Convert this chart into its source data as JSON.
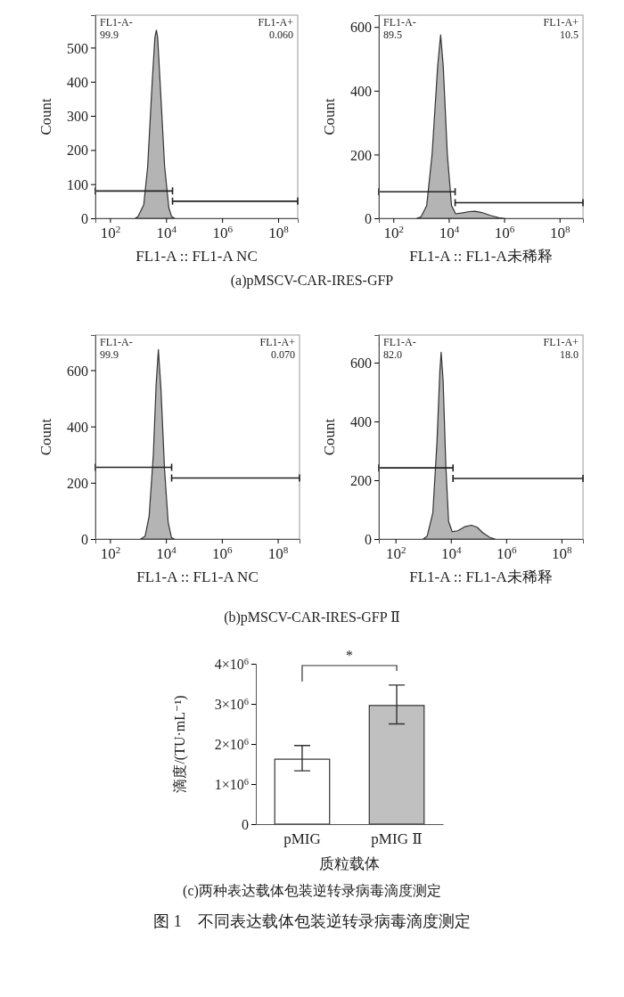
{
  "chart_data": [
    {
      "type": "area",
      "log": "x",
      "xlabel": "FL1-A :: FL1-A NC",
      "ylabel": "Count",
      "xlim": [
        30,
        500000000
      ],
      "ylim": [
        0,
        595
      ],
      "xticks": [
        {
          "value": 100,
          "label": "10$^{2}$"
        },
        {
          "value": 10000,
          "label": "10$^{4}$"
        },
        {
          "value": 1000000,
          "label": "10$^{6}$"
        },
        {
          "value": 100000000,
          "label": "10$^{8}$"
        }
      ],
      "yticks": [
        0,
        100,
        200,
        300,
        400,
        500
      ],
      "annotations": [
        "FL1-A-",
        "99.9",
        "FL1-A+",
        "0.060",
        "(a)pMSCV-CAR-IRES-GFP"
      ],
      "series": [
        {
          "type": "area",
          "color": "#b4b4b4",
          "x": [
            800,
            1000,
            1600,
            2200,
            3200,
            4000,
            4500,
            5000,
            6300,
            8900,
            12600,
            15800,
            20000
          ],
          "values": [
            0,
            5,
            40,
            150,
            400,
            530,
            551,
            530,
            380,
            150,
            30,
            5,
            0
          ]
        },
        {
          "type": "line",
          "color": "#222222",
          "x": [
            30,
            17000
          ],
          "values": [
            80,
            80
          ]
        },
        {
          "type": "line",
          "color": "#222222",
          "x": [
            17000,
            500000000
          ],
          "values": [
            50,
            50
          ]
        }
      ]
    },
    {
      "type": "area",
      "log": "x",
      "xlabel": "FL1-A :: FL1-A未稀释",
      "ylabel": "Count",
      "xlim": [
        30,
        700000000
      ],
      "ylim": [
        0,
        637
      ],
      "xticks": [
        {
          "value": 100,
          "label": "10$^{2}$"
        },
        {
          "value": 10000,
          "label": "10$^{4}$"
        },
        {
          "value": 1000000,
          "label": "10$^{6}$"
        },
        {
          "value": 100000000,
          "label": "10$^{8}$"
        }
      ],
      "yticks": [
        0,
        200,
        400,
        600
      ],
      "annotations": [
        "FL1-A-",
        "89.5",
        "FL1-A+",
        "10.5"
      ],
      "series": [
        {
          "type": "area",
          "color": "#b4b4b4",
          "x": [
            710,
            1000,
            1600,
            2500,
            4000,
            5100,
            6300,
            8900,
            12600,
            17800,
            31600,
            56200,
            89100,
            158500,
            316000,
            631000,
            1000000
          ],
          "values": [
            0,
            5,
            40,
            200,
            480,
            575,
            480,
            200,
            40,
            14,
            17,
            21,
            22,
            18,
            9,
            2,
            0
          ]
        },
        {
          "type": "line",
          "color": "#222222",
          "x": [
            30,
            17000
          ],
          "values": [
            83,
            83
          ]
        },
        {
          "type": "line",
          "color": "#222222",
          "x": [
            17000,
            700000000
          ],
          "values": [
            49,
            49
          ]
        }
      ]
    },
    {
      "type": "area",
      "log": "x",
      "xlabel": "FL1-A :: FL1-A NC",
      "ylabel": "Count",
      "xlim": [
        30,
        600000000
      ],
      "ylim": [
        0,
        725
      ],
      "xticks": [
        {
          "value": 100,
          "label": "10$^{2}$"
        },
        {
          "value": 10000,
          "label": "10$^{4}$"
        },
        {
          "value": 1000000,
          "label": "10$^{6}$"
        },
        {
          "value": 100000000,
          "label": "10$^{8}$"
        }
      ],
      "yticks": [
        0,
        200,
        400,
        600
      ],
      "annotations": [
        "FL1-A-",
        "99.9",
        "FL1-A+",
        "0.070",
        "(b)pMSCV-CAR-IRES-GFP Ⅱ"
      ],
      "series": [
        {
          "type": "area",
          "color": "#b4b4b4",
          "x": [
            1260,
            1800,
            2500,
            3550,
            4470,
            5370,
            6600,
            8900,
            12000,
            15800,
            20000
          ],
          "values": [
            0,
            10,
            80,
            300,
            550,
            673,
            540,
            250,
            60,
            5,
            0
          ]
        },
        {
          "type": "line",
          "color": "#222222",
          "x": [
            30,
            16000
          ],
          "values": [
            255,
            255
          ]
        },
        {
          "type": "line",
          "color": "#222222",
          "x": [
            16000,
            600000000
          ],
          "values": [
            217,
            217
          ]
        }
      ]
    },
    {
      "type": "area",
      "log": "x",
      "xlabel": "FL1-A :: FL1-A未稀释",
      "ylabel": "Count",
      "xlim": [
        25,
        600000000
      ],
      "ylim": [
        0,
        694
      ],
      "xticks": [
        {
          "value": 100,
          "label": "10$^{2}$"
        },
        {
          "value": 10000,
          "label": "10$^{4}$"
        },
        {
          "value": 1000000,
          "label": "10$^{6}$"
        },
        {
          "value": 100000000,
          "label": "10$^{8}$"
        }
      ],
      "yticks": [
        0,
        200,
        400,
        600
      ],
      "annotations": [
        "FL1-A-",
        "82.0",
        "FL1-A+",
        "18.0"
      ],
      "series": [
        {
          "type": "area",
          "color": "#b4b4b4",
          "x": [
            1000,
            1400,
            2240,
            3160,
            4000,
            4470,
            5250,
            6600,
            8300,
            11200,
            17800,
            31600,
            56200,
            89100,
            141000,
            251000,
            398000
          ],
          "values": [
            0,
            10,
            90,
            330,
            570,
            635,
            540,
            250,
            60,
            25,
            28,
            42,
            47,
            40,
            22,
            6,
            0
          ]
        },
        {
          "type": "line",
          "color": "#222222",
          "x": [
            25,
            12000
          ],
          "values": [
            242,
            242
          ]
        },
        {
          "type": "line",
          "color": "#222222",
          "x": [
            12000,
            600000000
          ],
          "values": [
            206,
            206
          ]
        }
      ]
    },
    {
      "type": "bar",
      "xlabel": "质粒载体",
      "ylabel": "滴度/(TU·mL⁻¹)",
      "categories": [
        "pMIG",
        "pMIG Ⅱ"
      ],
      "ylim": [
        0,
        4000000
      ],
      "yticks": [
        0,
        {
          "value": 1000000,
          "label": "1×10$^{6}$"
        },
        {
          "value": 2000000,
          "label": "2×10$^{6}$"
        },
        {
          "value": 3000000,
          "label": "3×10$^{6}$"
        },
        {
          "value": 4000000,
          "label": "4×10$^{6}$"
        }
      ],
      "values": [
        1620000,
        2960000
      ],
      "colors": [
        "#ffffff",
        "#c0c0c0"
      ],
      "errors": [
        [
          1330000,
          1960000
        ],
        [
          2500000,
          3470000
        ]
      ],
      "annotations": [
        "*",
        "(c)两种表达载体包装逆转录病毒滴度测定",
        "图 1　不同表达载体包装逆转录病毒滴度测定"
      ]
    }
  ]
}
